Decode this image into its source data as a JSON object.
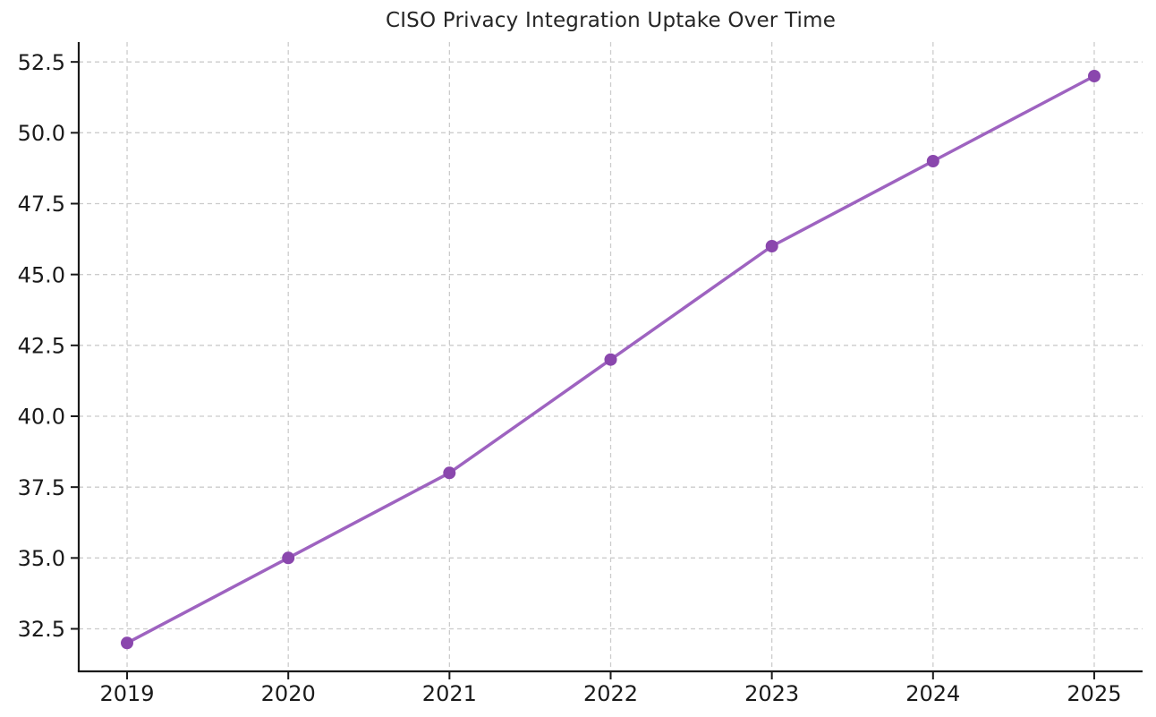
{
  "chart_data": {
    "type": "line",
    "title": "CISO Privacy Integration Uptake Over Time",
    "x": [
      2019,
      2020,
      2021,
      2022,
      2023,
      2024,
      2025
    ],
    "values": [
      32,
      35,
      38,
      42,
      46,
      49,
      52
    ],
    "xlabel": "",
    "ylabel": "",
    "xticks": [
      2019,
      2020,
      2021,
      2022,
      2023,
      2024,
      2025
    ],
    "yticks": [
      32.5,
      35.0,
      37.5,
      40.0,
      42.5,
      45.0,
      47.5,
      50.0,
      52.5
    ],
    "xlim": [
      2018.7,
      2025.3
    ],
    "ylim": [
      31.0,
      53.2
    ],
    "grid": true,
    "grid_style": "dashed",
    "legend_position": "none",
    "line_color": "#9e63c0",
    "marker_color": "#8a47ad",
    "marker_shape": "circle",
    "grid_color": "#cccccc",
    "axis_color": "#1a1a1a",
    "tick_label_color": "#1a1a1a",
    "title_color": "#262626",
    "background_color": "#ffffff"
  }
}
